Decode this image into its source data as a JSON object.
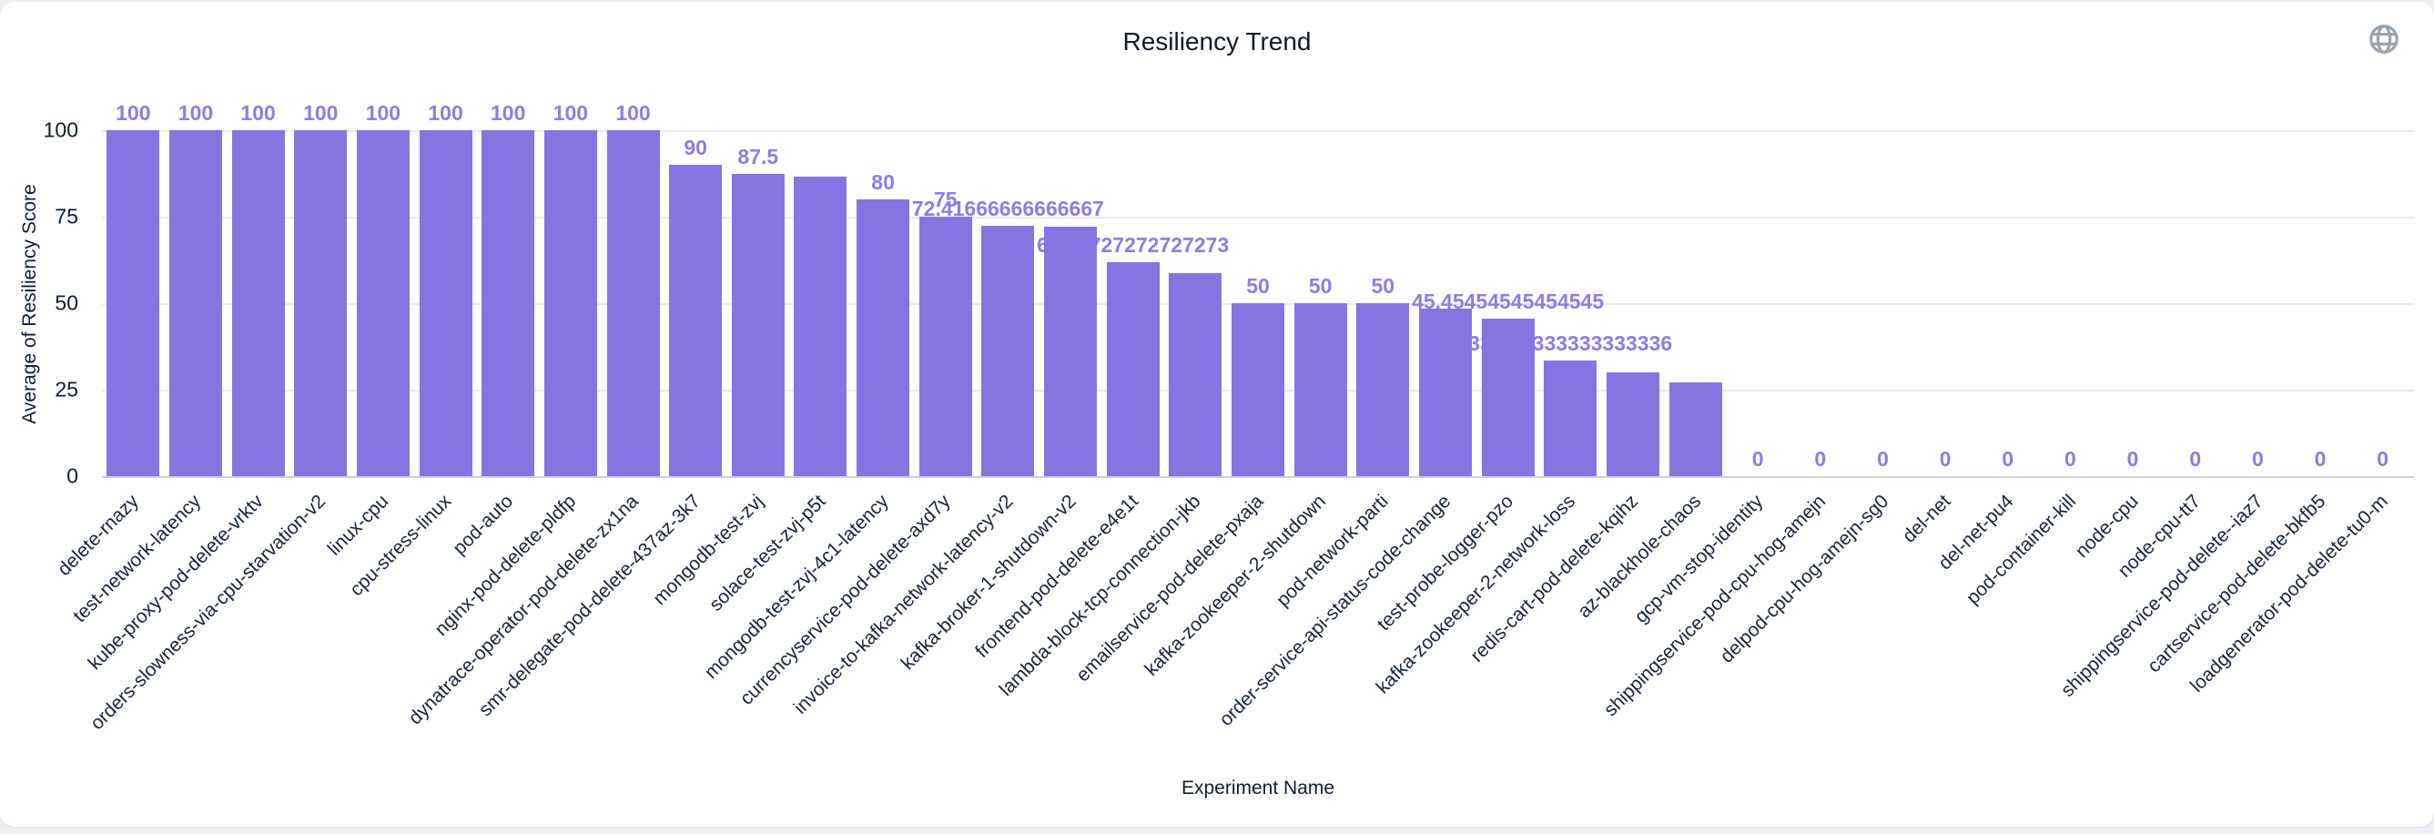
{
  "card": {
    "title": "Resiliency Trend"
  },
  "icons": {
    "top_right": "globe-icon"
  },
  "chart_data": {
    "type": "bar",
    "title": "Resiliency Trend",
    "xlabel": "Experiment Name",
    "ylabel": "Average of Resiliency Score",
    "ylim": [
      0,
      100
    ],
    "yticks": [
      0,
      25,
      50,
      75,
      100
    ],
    "grid": true,
    "legend": "none",
    "bar_color": "#8674e1",
    "value_label_color": "#8c7de6",
    "categories": [
      "delete-rnazy",
      "test-network-latency",
      "kube-proxy-pod-delete-vrktv",
      "orders-slowness-via-cpu-starvation-v2",
      "linux-cpu",
      "cpu-stress-linux",
      "pod-auto",
      "nginx-pod-delete-pldfp",
      "dynatrace-operator-pod-delete-zx1na",
      "smr-delegate-pod-delete-437az-3k7",
      "mongodb-test-zvj",
      "solace-test-zvj-p5t",
      "mongodb-test-zvj-4c1-latency",
      "currencyservice-pod-delete-axd7y",
      "invoice-to-kafka-network-latency-v2",
      "kafka-broker-1-shutdown-v2",
      "frontend-pod-delete-e4e1t",
      "lambda-block-tcp-connection-jkb",
      "emailservice-pod-delete-pxaja",
      "kafka-zookeeper-2-shutdown",
      "pod-network-parti",
      "order-service-api-status-code-change",
      "test-probe-logger-pzo",
      "kafka-zookeeper-2-network-loss",
      "redis-cart-pod-delete-kqihz",
      "az-blackhole-chaos",
      "gcp-vm-stop-identity",
      "shippingservice-pod-cpu-hog-amejn",
      "delpod-cpu-hog-amejn-sg0",
      "del-net",
      "del-net-pu4",
      "pod-container-kill",
      "node-cpu",
      "node-cpu-tt7",
      "shippingservice-pod-delete--iaz7",
      "cartservice-pod-delete-bkfb5",
      "loadgenerator-pod-delete-tu0-m"
    ],
    "values": [
      100,
      100,
      100,
      100,
      100,
      100,
      100,
      100,
      100,
      90,
      87.5,
      86.66666666666667,
      80,
      75,
      72.41666666666667,
      72.16666666666667,
      61.72727272727273,
      58.75,
      50,
      50,
      50,
      48.33333333333333,
      45.45454545454545,
      33.333333333333336,
      30,
      27,
      0,
      0,
      0,
      0,
      0,
      0,
      0,
      0,
      0,
      0,
      0
    ],
    "visible_value_labels": [
      "100",
      "100",
      "100",
      "100",
      "100",
      "100",
      "100",
      "100",
      "100",
      "90",
      "87.5",
      null,
      "80",
      "75",
      "72.41666666666667",
      null,
      "61.72727272727273",
      null,
      "50",
      "50",
      "50",
      null,
      "45.45454545454545",
      "33.333333333333336",
      null,
      null,
      "0",
      "0",
      "0",
      "0",
      "0",
      "0",
      "0",
      "0",
      "0",
      "0",
      "0"
    ]
  }
}
